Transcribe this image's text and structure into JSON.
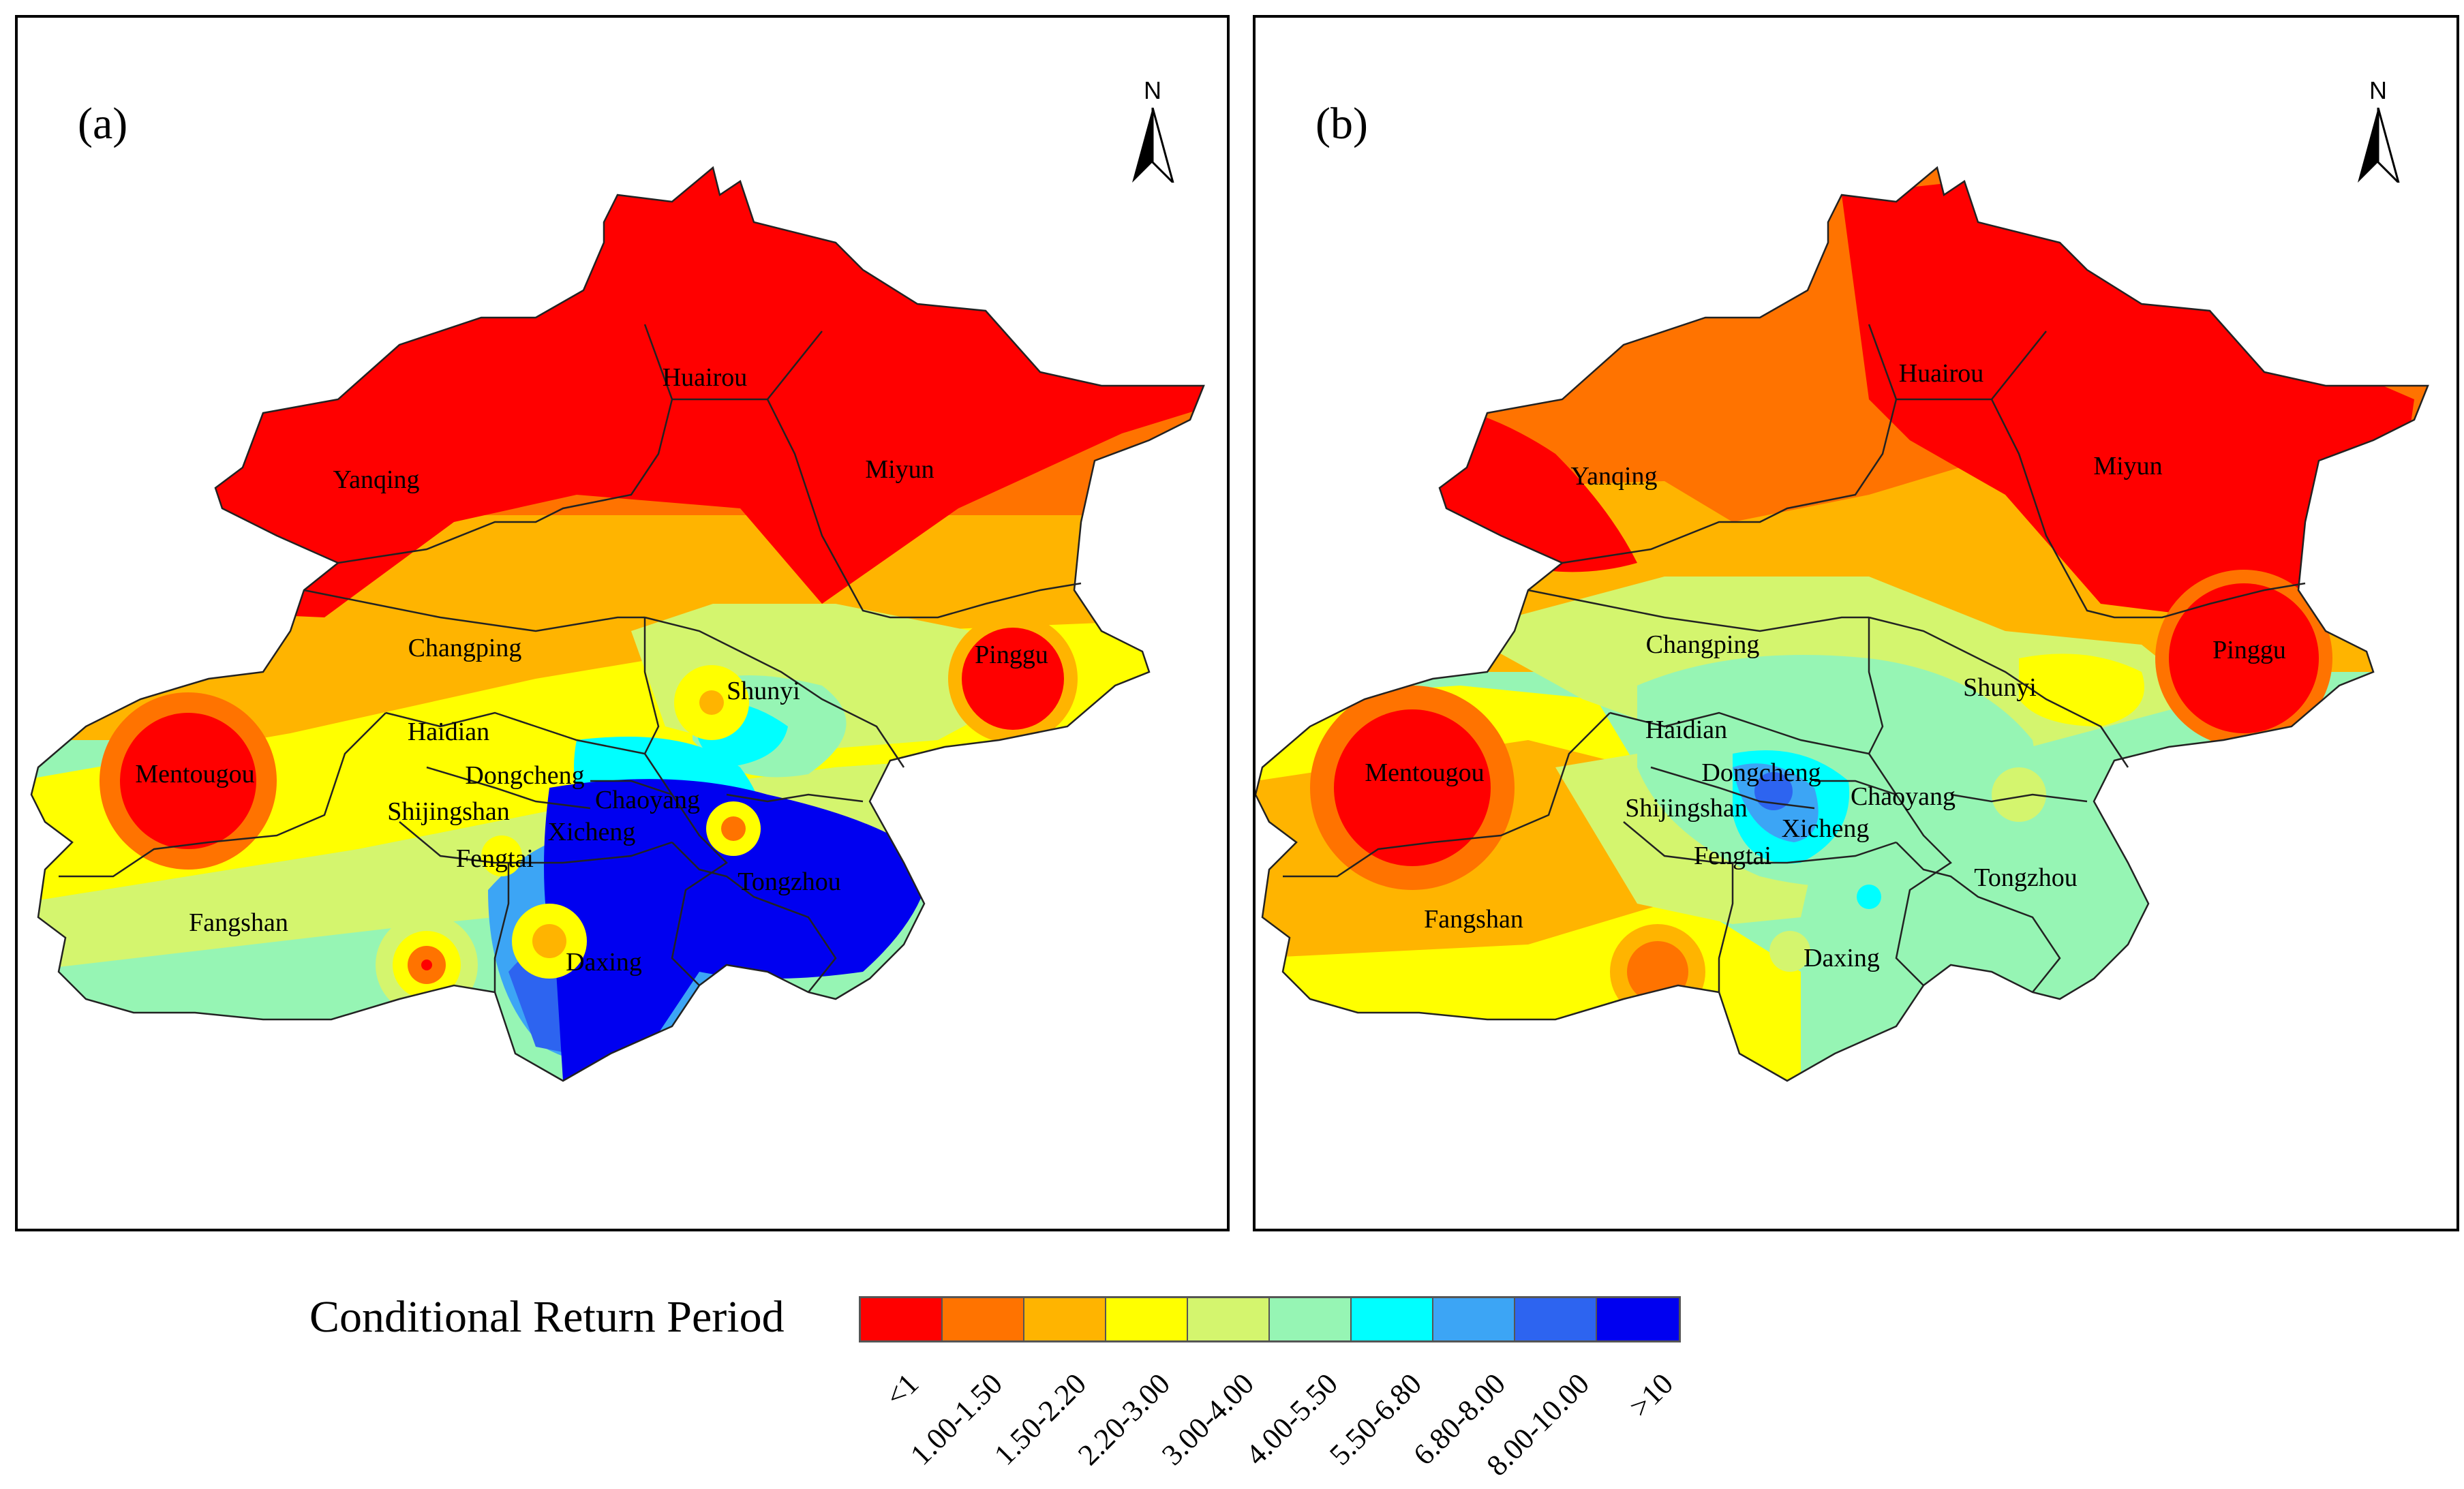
{
  "panels": [
    {
      "label": "(a)",
      "north_label": "N",
      "districts": [
        "Yanqing",
        "Huairou",
        "Miyun",
        "Changping",
        "Pinggu",
        "Shunyi",
        "Haidian",
        "Mentougou",
        "Dongcheng",
        "Chaoyang",
        "Shijingshan",
        "Xicheng",
        "Fengtai",
        "Tongzhou",
        "Fangshan",
        "Daxing"
      ]
    },
    {
      "label": "(b)",
      "north_label": "N",
      "districts": [
        "Yanqing",
        "Huairou",
        "Miyun",
        "Changping",
        "Pinggu",
        "Shunyi",
        "Haidian",
        "Mentougou",
        "Dongcheng",
        "Chaoyang",
        "Shijingshan",
        "Xicheng",
        "Fengtai",
        "Tongzhou",
        "Fangshan",
        "Daxing"
      ]
    }
  ],
  "legend": {
    "title": "Conditional Return Period",
    "classes": [
      {
        "label": "<1",
        "color": "#ff0000"
      },
      {
        "label": "1.00-1.50",
        "color": "#ff7300"
      },
      {
        "label": "1.50-2.20",
        "color": "#ffb400"
      },
      {
        "label": "2.20-3.00",
        "color": "#ffff00"
      },
      {
        "label": "3.00-4.00",
        "color": "#d4f56e"
      },
      {
        "label": "4.00-5.50",
        "color": "#96f5b4"
      },
      {
        "label": "5.50-6.80",
        "color": "#00ffff"
      },
      {
        "label": "6.80-8.00",
        "color": "#3ca5f5"
      },
      {
        "label": "8.00-10.00",
        "color": "#2d64f0"
      },
      {
        "label": ">10",
        "color": "#0000f0"
      }
    ]
  }
}
